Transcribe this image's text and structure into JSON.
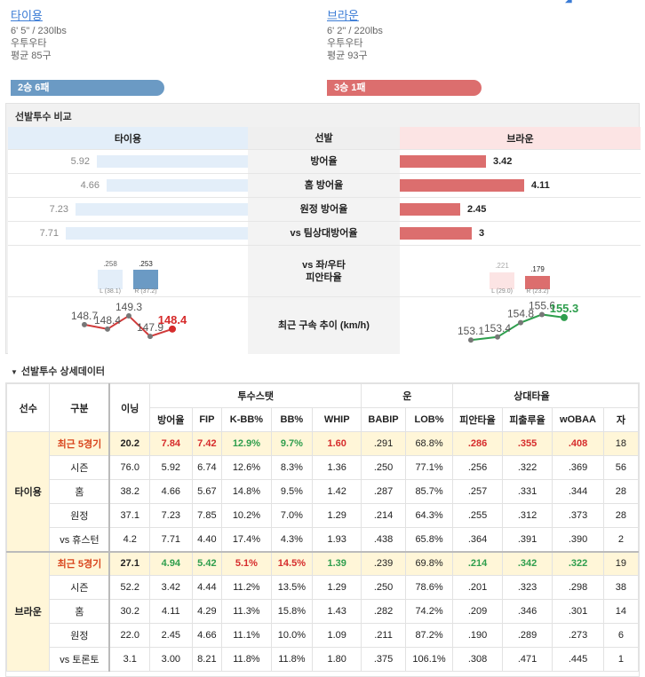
{
  "pitchers": {
    "left": {
      "name": "타이용",
      "body": "6' 5\" / 230lbs",
      "hand": "우투우타",
      "avg_pitches": "평균 85구",
      "record": "2승 6패"
    },
    "right": {
      "name": "브라운",
      "body": "6' 2\" / 220lbs",
      "hand": "우투우타",
      "avg_pitches": "평균 93구",
      "record": "3승 1패"
    }
  },
  "comparison": {
    "title": "선발투수 비교",
    "header": {
      "left": "타이용",
      "middle": "선발",
      "right": "브라운"
    },
    "rows": [
      {
        "label": "방어율",
        "left": "5.92",
        "right": "3.42",
        "left_frac": 0.63,
        "right_frac": 0.36
      },
      {
        "label": "홈 방어율",
        "left": "4.66",
        "right": "4.11",
        "left_frac": 0.59,
        "right_frac": 0.52
      },
      {
        "label": "원정 방어율",
        "left": "7.23",
        "right": "2.45",
        "left_frac": 0.72,
        "right_frac": 0.25
      },
      {
        "label": "vs 팀상대방어율",
        "left": "7.71",
        "right": "3",
        "left_frac": 0.76,
        "right_frac": 0.3
      }
    ],
    "split": {
      "label_line1": "vs 좌/우타",
      "label_line2": "피안타율",
      "left": {
        "l_val": ".258",
        "l_sub": "L (38.1)",
        "r_val": ".253",
        "r_sub": "R (37.2)"
      },
      "right": {
        "l_val": ".221",
        "l_sub": "L (29.0)",
        "r_val": ".179",
        "r_sub": "R (23.2)"
      }
    },
    "velocity": {
      "label": "최근 구속 추이 (km/h)",
      "left": [
        148.7,
        148.4,
        149.3,
        147.9,
        148.4
      ],
      "right": [
        153.1,
        153.4,
        154.8,
        155.6,
        155.3
      ]
    }
  },
  "details": {
    "title": "선발투수 상세데이터",
    "headers": {
      "player": "선수",
      "split": "구분",
      "innings": "이닝",
      "group_pitching": "투수스탯",
      "group_luck": "운",
      "group_opp": "상대타율",
      "cols": [
        "방어율",
        "FIP",
        "K-BB%",
        "BB%",
        "WHIP",
        "BABIP",
        "LOB%",
        "피안타율",
        "피출루율",
        "wOBAA",
        "자"
      ]
    },
    "players": [
      {
        "name": "타이용",
        "rows": [
          {
            "split": "최근 5경기",
            "ip": "20.2",
            "vals": [
              "7.84",
              "7.42",
              "12.9%",
              "9.7%",
              "1.60",
              ".291",
              "68.8%",
              ".286",
              ".355",
              ".408",
              "18"
            ]
          },
          {
            "split": "시즌",
            "ip": "76.0",
            "vals": [
              "5.92",
              "6.74",
              "12.6%",
              "8.3%",
              "1.36",
              ".250",
              "77.1%",
              ".256",
              ".322",
              ".369",
              "56"
            ]
          },
          {
            "split": "홈",
            "ip": "38.2",
            "vals": [
              "4.66",
              "5.67",
              "14.8%",
              "9.5%",
              "1.42",
              ".287",
              "85.7%",
              ".257",
              ".331",
              ".344",
              "28"
            ]
          },
          {
            "split": "원정",
            "ip": "37.1",
            "vals": [
              "7.23",
              "7.85",
              "10.2%",
              "7.0%",
              "1.29",
              ".214",
              "64.3%",
              ".255",
              ".312",
              ".373",
              "28"
            ]
          },
          {
            "split": "vs 휴스턴",
            "ip": "4.2",
            "vals": [
              "7.71",
              "4.40",
              "17.4%",
              "4.3%",
              "1.93",
              ".438",
              "65.8%",
              ".364",
              ".391",
              ".390",
              "2"
            ]
          }
        ]
      },
      {
        "name": "브라운",
        "rows": [
          {
            "split": "최근 5경기",
            "ip": "27.1",
            "vals": [
              "4.94",
              "5.42",
              "5.1%",
              "14.5%",
              "1.39",
              ".239",
              "69.8%",
              ".214",
              ".342",
              ".322",
              "19"
            ]
          },
          {
            "split": "시즌",
            "ip": "52.2",
            "vals": [
              "3.42",
              "4.44",
              "11.2%",
              "13.5%",
              "1.29",
              ".250",
              "78.6%",
              ".201",
              ".323",
              ".298",
              "38"
            ]
          },
          {
            "split": "홈",
            "ip": "30.2",
            "vals": [
              "4.11",
              "4.29",
              "11.3%",
              "15.8%",
              "1.43",
              ".282",
              "74.2%",
              ".209",
              ".346",
              ".301",
              "14"
            ]
          },
          {
            "split": "원정",
            "ip": "22.0",
            "vals": [
              "2.45",
              "4.66",
              "11.1%",
              "10.0%",
              "1.09",
              ".211",
              "87.2%",
              ".190",
              ".289",
              ".273",
              "6"
            ]
          },
          {
            "split": "vs 토론토",
            "ip": "3.1",
            "vals": [
              "3.00",
              "8.21",
              "11.8%",
              "11.8%",
              "1.80",
              ".375",
              "106.1%",
              ".308",
              ".471",
              ".445",
              "1"
            ]
          }
        ]
      }
    ]
  },
  "colors": {
    "left_accent": "#6b9ac4",
    "right_accent": "#dc6e6e",
    "left_light": "#e3eef9",
    "right_light": "#fce4e4",
    "highlight": "#fff6d8"
  }
}
